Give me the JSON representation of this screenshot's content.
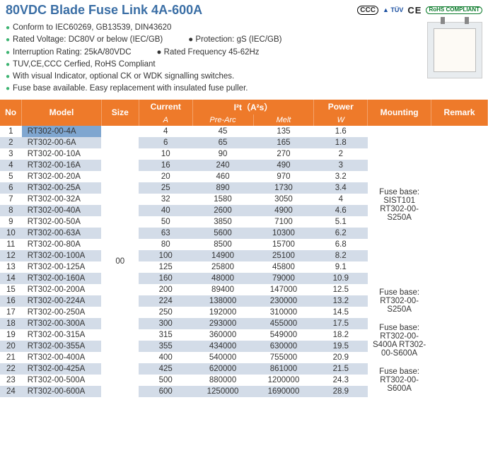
{
  "title": "80VDC Blade Fuse Link 4A-600A",
  "cert": {
    "ccc": "CCC",
    "tuv": "▲\nTÜV",
    "ce": "CE",
    "rohs": "RoHS\nCOMPLIANT"
  },
  "bullets": [
    "Conform to IEC60269, GB13539, DIN43620",
    "Rated Voltage: DC80V or below (IEC/GB)",
    "Interruption Rating: 25kA/80VDC",
    "TUV,CE,CCC Cerfied, RoHS Compliant",
    "With visual Indicator, optional CK or WDK signalling switches.",
    "Fuse base available. Easy replacement with insulated fuse puller."
  ],
  "bullets_col2": [
    "Protection: gS (IEC/GB)",
    "Rated Frequency 45-62Hz"
  ],
  "columns": {
    "no": "No",
    "model": "Model",
    "size": "Size",
    "current_top": "Current",
    "current_sub": "A",
    "i2t": "I²t（A²s）",
    "prearc": "Pre-Arc",
    "melt": "Melt",
    "power_top": "Power",
    "power_sub": "W",
    "mounting": "Mounting",
    "remark": "Remark"
  },
  "size_value": "00",
  "mounting_blocks": [
    {
      "rows": 14,
      "text": "Fuse base:\nSIST101\nRT302-00-\nS250A"
    },
    {
      "rows": 3,
      "text": "Fuse base:\nRT302-00-\nS250A"
    },
    {
      "rows": 4,
      "text": "Fuse base:\nRT302-00-\nS400A  RT302-\n00-S600A"
    },
    {
      "rows": 3,
      "text": "Fuse base:\nRT302-00-\nS600A"
    }
  ],
  "rows": [
    {
      "no": 1,
      "model": "RT302-00-4A",
      "cur": "4",
      "pre": "45",
      "melt": "135",
      "pow": "1.6",
      "sel": true
    },
    {
      "no": 2,
      "model": "RT302-00-6A",
      "cur": "6",
      "pre": "65",
      "melt": "165",
      "pow": "1.8"
    },
    {
      "no": 3,
      "model": "RT302-00-10A",
      "cur": "10",
      "pre": "90",
      "melt": "270",
      "pow": "2"
    },
    {
      "no": 4,
      "model": "RT302-00-16A",
      "cur": "16",
      "pre": "240",
      "melt": "490",
      "pow": "3"
    },
    {
      "no": 5,
      "model": "RT302-00-20A",
      "cur": "20",
      "pre": "460",
      "melt": "970",
      "pow": "3.2"
    },
    {
      "no": 6,
      "model": "RT302-00-25A",
      "cur": "25",
      "pre": "890",
      "melt": "1730",
      "pow": "3.4"
    },
    {
      "no": 7,
      "model": "RT302-00-32A",
      "cur": "32",
      "pre": "1580",
      "melt": "3050",
      "pow": "4"
    },
    {
      "no": 8,
      "model": "RT302-00-40A",
      "cur": "40",
      "pre": "2600",
      "melt": "4900",
      "pow": "4.6"
    },
    {
      "no": 9,
      "model": "RT302-00-50A",
      "cur": "50",
      "pre": "3850",
      "melt": "7100",
      "pow": "5.1"
    },
    {
      "no": 10,
      "model": "RT302-00-63A",
      "cur": "63",
      "pre": "5600",
      "melt": "10300",
      "pow": "6.2"
    },
    {
      "no": 11,
      "model": "RT302-00-80A",
      "cur": "80",
      "pre": "8500",
      "melt": "15700",
      "pow": "6.8"
    },
    {
      "no": 12,
      "model": "RT302-00-100A",
      "cur": "100",
      "pre": "14900",
      "melt": "25100",
      "pow": "8.2"
    },
    {
      "no": 13,
      "model": "RT302-00-125A",
      "cur": "125",
      "pre": "25800",
      "melt": "45800",
      "pow": "9.1"
    },
    {
      "no": 14,
      "model": "RT302-00-160A",
      "cur": "160",
      "pre": "48000",
      "melt": "79000",
      "pow": "10.9"
    },
    {
      "no": 15,
      "model": "RT302-00-200A",
      "cur": "200",
      "pre": "89400",
      "melt": "147000",
      "pow": "12.5"
    },
    {
      "no": 16,
      "model": "RT302-00-224A",
      "cur": "224",
      "pre": "138000",
      "melt": "230000",
      "pow": "13.2"
    },
    {
      "no": 17,
      "model": "RT302-00-250A",
      "cur": "250",
      "pre": "192000",
      "melt": "310000",
      "pow": "14.5"
    },
    {
      "no": 18,
      "model": "RT302-00-300A",
      "cur": "300",
      "pre": "293000",
      "melt": "455000",
      "pow": "17.5"
    },
    {
      "no": 19,
      "model": "RT302-00-315A",
      "cur": "315",
      "pre": "360000",
      "melt": "549000",
      "pow": "18.2"
    },
    {
      "no": 20,
      "model": "RT302-00-355A",
      "cur": "355",
      "pre": "434000",
      "melt": "630000",
      "pow": "19.5"
    },
    {
      "no": 21,
      "model": "RT302-00-400A",
      "cur": "400",
      "pre": "540000",
      "melt": "755000",
      "pow": "20.9"
    },
    {
      "no": 22,
      "model": "RT302-00-425A",
      "cur": "425",
      "pre": "620000",
      "melt": "861000",
      "pow": "21.5"
    },
    {
      "no": 23,
      "model": "RT302-00-500A",
      "cur": "500",
      "pre": "880000",
      "melt": "1200000",
      "pow": "24.3"
    },
    {
      "no": 24,
      "model": "RT302-00-600A",
      "cur": "600",
      "pre": "1250000",
      "melt": "1690000",
      "pow": "28.9"
    }
  ],
  "colors": {
    "header_bg": "#ee7a2a",
    "row_even": "#d3dce8",
    "row_odd": "#ffffff",
    "title": "#3a6ea5",
    "bullet": "#3cb371",
    "selected": "#7fa6d0"
  }
}
